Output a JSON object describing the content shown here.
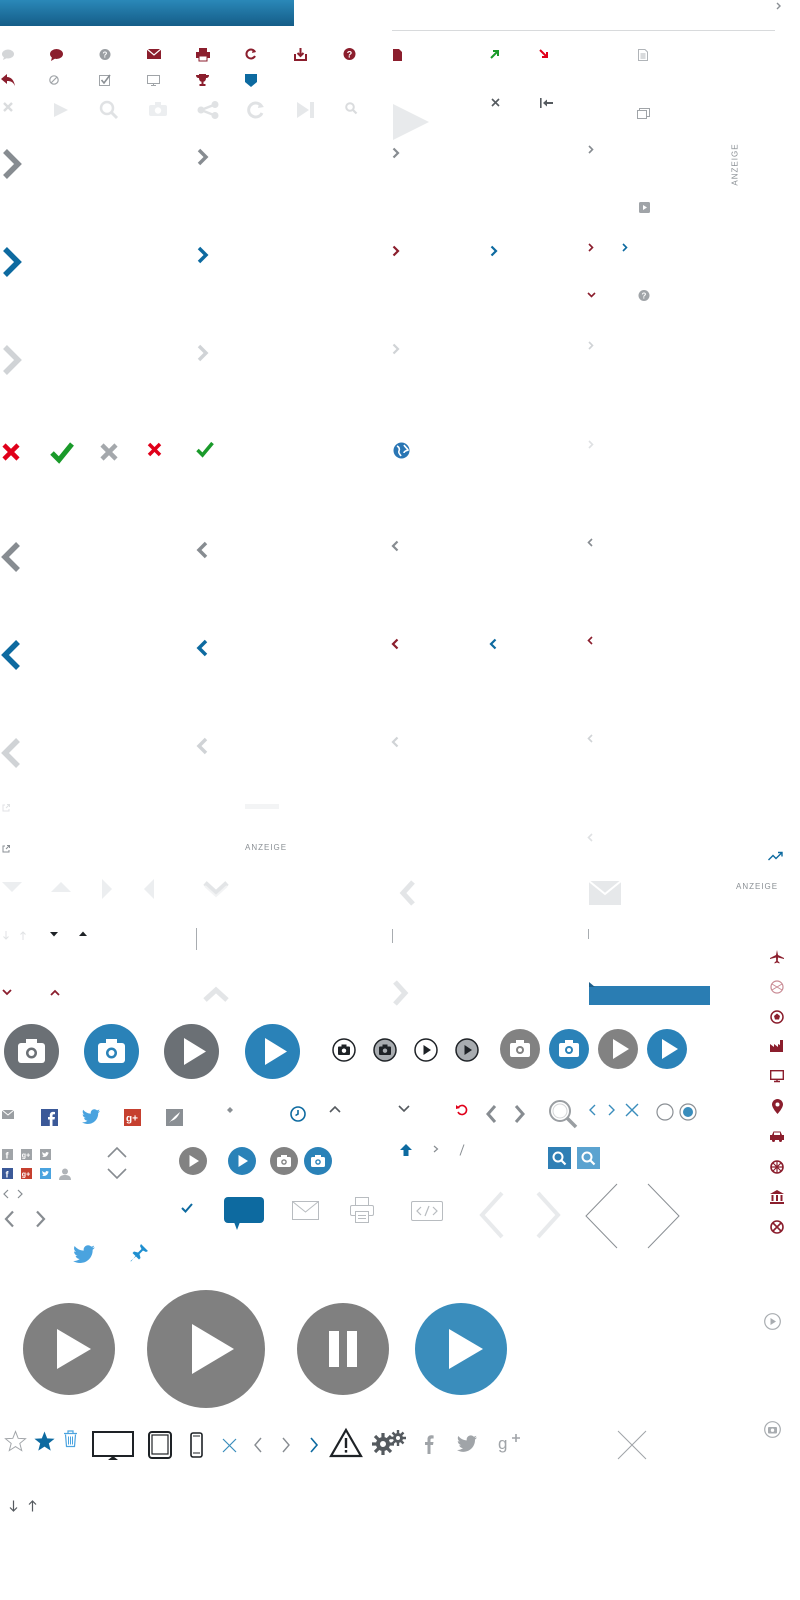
{
  "labels": {
    "anzeige_top": "ANZEIGE",
    "anzeige_mid": "ANZEIGE",
    "anzeige_right": "ANZEIGE"
  },
  "colors": {
    "blue": "#0d6aa0",
    "steel_blue": "#3a8dbc",
    "gray": "#808080",
    "dark_gray": "#6b7075",
    "light_gray": "#c8ccd0",
    "pale_gray": "#e2e4e6",
    "red": "#8b1e2d",
    "bright_red": "#e0001a",
    "green": "#1a9a2a",
    "twitter": "#4aa3df",
    "facebook": "#3b5998",
    "google": "#c6402f"
  },
  "icons": [
    "comment-icon",
    "speech-bubble-icon",
    "question-bubble-icon",
    "mail-icon",
    "print-icon",
    "refresh-icon",
    "download-icon",
    "help-icon",
    "document-icon",
    "arrow-up-right-icon",
    "arrow-down-right-icon",
    "reply-icon",
    "block-icon",
    "checkbox-icon",
    "monitor-icon",
    "trophy-icon",
    "badge-icon",
    "close-icon",
    "play-icon",
    "zoom-icon",
    "camera-icon",
    "share-icon",
    "reload-icon",
    "skip-icon",
    "search-icon",
    "chevron-right-icon",
    "chevron-left-icon",
    "check-icon",
    "globe-icon",
    "airplane-icon",
    "map-pin-icon",
    "car-icon",
    "bank-icon",
    "star-icon",
    "trash-icon",
    "tablet-icon",
    "phone-icon",
    "warning-icon",
    "gears-icon",
    "facebook-icon",
    "twitter-icon",
    "google-plus-icon",
    "pause-icon",
    "pin-icon",
    "trend-icon"
  ]
}
